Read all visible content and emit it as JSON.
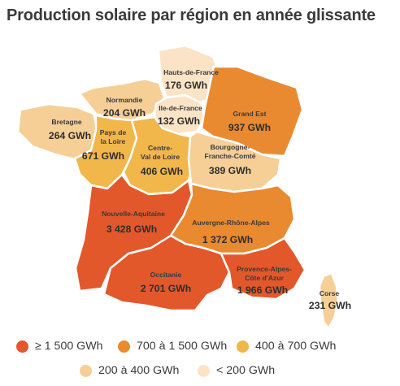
{
  "title": "Production solaire par région en année glissante",
  "colors": {
    "c1": "#e2582b",
    "c2": "#e98a31",
    "c3": "#f1b74b",
    "c4": "#f6cf97",
    "c5": "#fbe3c6"
  },
  "legend": [
    {
      "label": "≥ 1 500 GWh",
      "color": "#e2582b"
    },
    {
      "label": "700 à 1 500 GWh",
      "color": "#e98a31"
    },
    {
      "label": "400 à 700 GWh",
      "color": "#f1b74b"
    },
    {
      "label": "200 à 400 GWh",
      "color": "#f6cf97"
    },
    {
      "label": "< 200 GWh",
      "color": "#fbe3c6"
    }
  ],
  "regions": {
    "hdf": {
      "name": "Hauts-de-France",
      "value": "176 GWh",
      "gwh": 176,
      "color": "#fbe3c6"
    },
    "nor": {
      "name": "Normandie",
      "value": "204 GWh",
      "gwh": 204,
      "color": "#f6cf97"
    },
    "idf": {
      "name": "Ile-de-France",
      "value": "132 GWh",
      "gwh": 132,
      "color": "#fbe3c6"
    },
    "ges": {
      "name": "Grand Est",
      "value": "937 GWh",
      "gwh": 937,
      "color": "#e98a31"
    },
    "bre": {
      "name": "Bretagne",
      "value": "264 GWh",
      "gwh": 264,
      "color": "#f6cf97"
    },
    "pdl": {
      "name1": "Pays de",
      "name2": "la Loire",
      "value": "671 GWh",
      "gwh": 671,
      "color": "#f1b74b"
    },
    "cvl": {
      "name1": "Centre-",
      "name2": "Val de Loire",
      "value": "406 GWh",
      "gwh": 406,
      "color": "#f1b74b"
    },
    "bfc": {
      "name1": "Bourgogne-",
      "name2": "Franche-Comté",
      "value": "389 GWh",
      "gwh": 389,
      "color": "#f6cf97"
    },
    "naq": {
      "name": "Nouvelle-Aquitaine",
      "value": "3 428 GWh",
      "gwh": 3428,
      "color": "#e2582b"
    },
    "ara": {
      "name": "Auvergne-Rhône-Alpes",
      "value": "1 372 GWh",
      "gwh": 1372,
      "color": "#e98a31"
    },
    "occ": {
      "name": "Occitanie",
      "value": "2 701 GWh",
      "gwh": 2701,
      "color": "#e2582b"
    },
    "pac": {
      "name1": "Provence-Alpes-",
      "name2": "Côte d'Azur",
      "value": "1 966 GWh",
      "gwh": 1966,
      "color": "#e2582b"
    },
    "cor": {
      "name": "Corse",
      "value": "231 GWh",
      "gwh": 231,
      "color": "#f6cf97"
    }
  }
}
